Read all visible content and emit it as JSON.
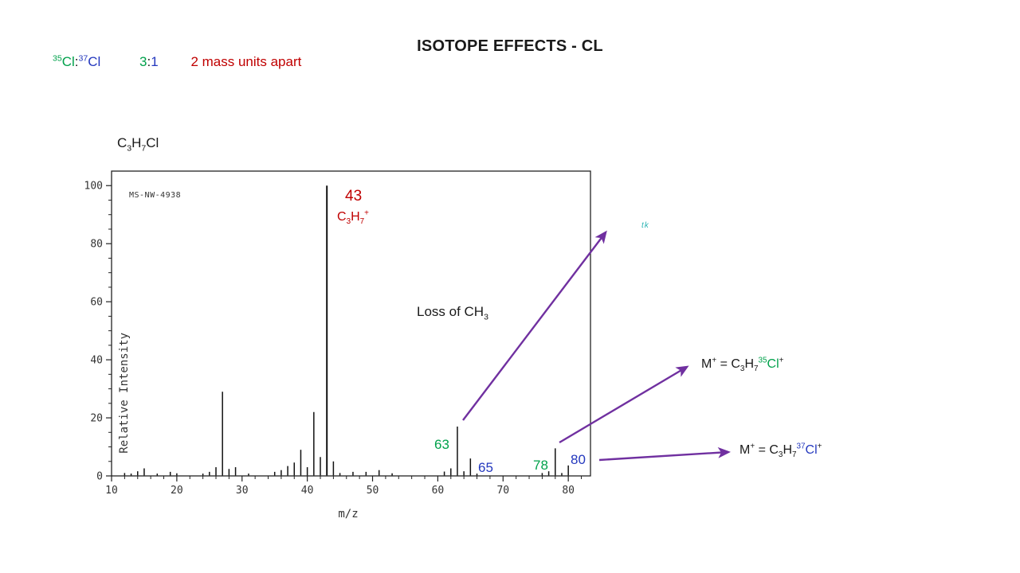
{
  "slide": {
    "title": "ISOTOPE EFFECTS - CL"
  },
  "colors": {
    "ink": "#1a1a1a",
    "green": "#00A14B",
    "blue": "#2438BE",
    "red": "#C00000",
    "purple": "#7030A0",
    "teal": "#2BB3B3",
    "chart_ink": "#222222"
  },
  "isotope_line": {
    "pair": [
      {
        "t": "35",
        "s": "sup",
        "c": "green"
      },
      {
        "t": "Cl",
        "s": "n",
        "c": "green"
      },
      {
        "t": ":",
        "s": "n",
        "c": "ink"
      },
      {
        "t": "37",
        "s": "sup",
        "c": "blue"
      },
      {
        "t": "Cl",
        "s": "n",
        "c": "blue"
      }
    ],
    "ratio": [
      {
        "t": "3",
        "s": "n",
        "c": "green"
      },
      {
        "t": ":",
        "s": "n",
        "c": "ink"
      },
      {
        "t": "1",
        "s": "n",
        "c": "blue"
      }
    ],
    "note": "2 mass units apart"
  },
  "compound": [
    {
      "t": "C"
    },
    {
      "t": "3",
      "s": "sub"
    },
    {
      "t": "H"
    },
    {
      "t": "7",
      "s": "sub"
    },
    {
      "t": "Cl"
    }
  ],
  "chart_data": {
    "type": "bar",
    "title": "C3H7Cl",
    "watermark": "MS-NW-4938",
    "xlabel": "m/z",
    "ylabel": "Relative Intensity",
    "xlim": [
      10,
      83.4
    ],
    "ylim": [
      0,
      105
    ],
    "x_ticks": [
      10,
      20,
      30,
      40,
      50,
      60,
      70,
      80
    ],
    "y_ticks": [
      0,
      20,
      40,
      60,
      80,
      100
    ],
    "x_minor_step": 2,
    "y_minor_step": 5,
    "grid": false,
    "legend": "none",
    "peaks": [
      [
        12,
        1
      ],
      [
        13,
        0.8
      ],
      [
        14,
        1.6
      ],
      [
        15,
        2.6
      ],
      [
        17,
        0.8
      ],
      [
        19,
        1.4
      ],
      [
        20,
        0.9
      ],
      [
        24,
        0.8
      ],
      [
        25,
        1.4
      ],
      [
        26,
        3
      ],
      [
        27,
        29
      ],
      [
        28,
        2.4
      ],
      [
        29,
        3
      ],
      [
        31,
        0.8
      ],
      [
        35,
        1.4
      ],
      [
        36,
        2
      ],
      [
        37,
        3.4
      ],
      [
        38,
        4.6
      ],
      [
        39,
        9
      ],
      [
        40,
        3
      ],
      [
        41,
        22
      ],
      [
        42,
        6.5
      ],
      [
        43,
        100
      ],
      [
        44,
        5
      ],
      [
        45,
        1
      ],
      [
        47,
        1.4
      ],
      [
        49,
        1.4
      ],
      [
        51,
        2
      ],
      [
        53,
        0.9
      ],
      [
        61,
        1.5
      ],
      [
        62,
        2.6
      ],
      [
        63,
        17
      ],
      [
        64,
        1.6
      ],
      [
        65,
        6
      ],
      [
        66,
        0.8
      ],
      [
        76,
        1
      ],
      [
        77,
        1.6
      ],
      [
        78,
        9.5
      ],
      [
        79,
        1
      ],
      [
        80,
        3.6
      ]
    ]
  },
  "annotations": {
    "peak43_number": "43",
    "peak43_formula": [
      {
        "t": "C"
      },
      {
        "t": "3",
        "s": "sub"
      },
      {
        "t": "H"
      },
      {
        "t": "7",
        "s": "sub"
      },
      {
        "t": "+",
        "s": "sup"
      }
    ],
    "loss_ch3": [
      {
        "t": "Loss of CH"
      },
      {
        "t": "3",
        "s": "sub"
      }
    ],
    "peak63": "63",
    "peak65": "65",
    "peak78": "78",
    "peak80": "80",
    "m35": [
      {
        "t": "M"
      },
      {
        "t": "+",
        "s": "sup"
      },
      {
        "t": " = C"
      },
      {
        "t": "3",
        "s": "sub"
      },
      {
        "t": "H"
      },
      {
        "t": "7",
        "s": "sub"
      },
      {
        "t": "35",
        "s": "sup",
        "c": "green"
      },
      {
        "t": "Cl",
        "s": "n",
        "c": "green"
      },
      {
        "t": "+",
        "s": "sup"
      }
    ],
    "m37": [
      {
        "t": "M"
      },
      {
        "t": "+",
        "s": "sup"
      },
      {
        "t": " = C"
      },
      {
        "t": "3",
        "s": "sub"
      },
      {
        "t": "H"
      },
      {
        "t": "7",
        "s": "sub"
      },
      {
        "t": "37",
        "s": "sup",
        "c": "blue"
      },
      {
        "t": "Cl",
        "s": "n",
        "c": "blue"
      },
      {
        "t": "+",
        "s": "sup"
      }
    ]
  },
  "artifact": {
    "text": "tk"
  }
}
